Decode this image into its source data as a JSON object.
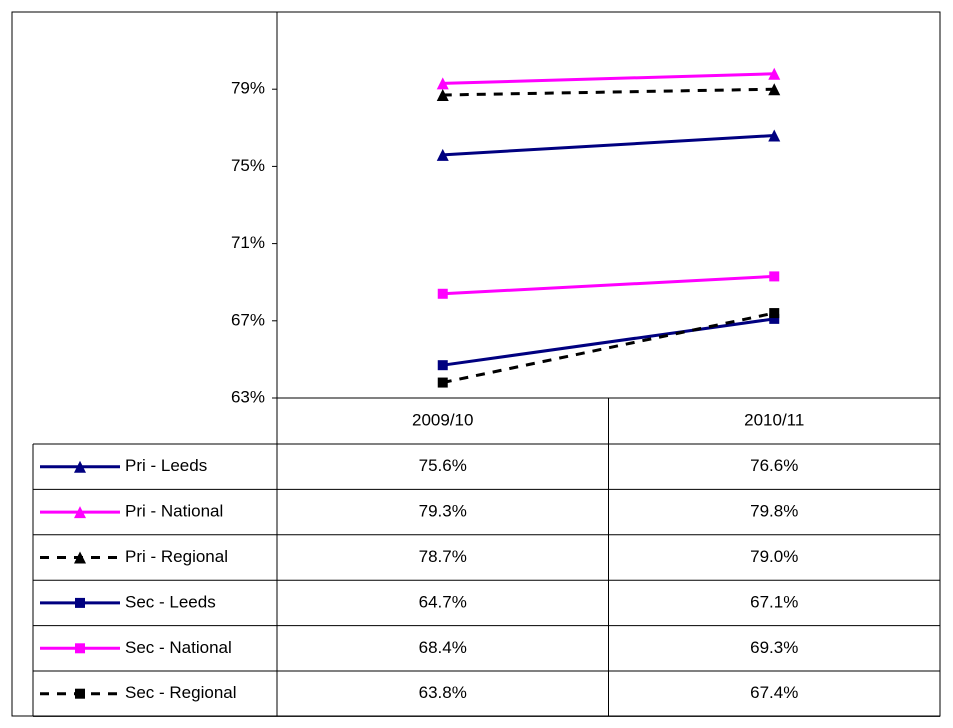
{
  "chart_data": {
    "type": "line",
    "categories": [
      "2009/10",
      "2010/11"
    ],
    "ylim": [
      63,
      83
    ],
    "yticks": [
      {
        "value": 63,
        "label": "63%"
      },
      {
        "value": 67,
        "label": "67%"
      },
      {
        "value": 71,
        "label": "71%"
      },
      {
        "value": 75,
        "label": "75%"
      },
      {
        "value": 79,
        "label": "79%"
      }
    ],
    "series": [
      {
        "name": "Pri - Leeds",
        "color": "#000080",
        "marker": "triangle",
        "dashed": false,
        "values": [
          75.6,
          76.6
        ],
        "value_labels": [
          "75.6%",
          "76.6%"
        ]
      },
      {
        "name": "Pri - National",
        "color": "#ff00ff",
        "marker": "triangle",
        "dashed": false,
        "values": [
          79.3,
          79.8
        ],
        "value_labels": [
          "79.3%",
          "79.8%"
        ]
      },
      {
        "name": "Pri - Regional",
        "color": "#000000",
        "marker": "triangle",
        "dashed": true,
        "values": [
          78.7,
          79.0
        ],
        "value_labels": [
          "78.7%",
          "79.0%"
        ]
      },
      {
        "name": "Sec - Leeds",
        "color": "#000080",
        "marker": "square",
        "dashed": false,
        "values": [
          64.7,
          67.1
        ],
        "value_labels": [
          "64.7%",
          "67.1%"
        ]
      },
      {
        "name": "Sec - National",
        "color": "#ff00ff",
        "marker": "square",
        "dashed": false,
        "values": [
          68.4,
          69.3
        ],
        "value_labels": [
          "68.4%",
          "69.3%"
        ]
      },
      {
        "name": "Sec - Regional",
        "color": "#000000",
        "marker": "square",
        "dashed": true,
        "values": [
          63.8,
          67.4
        ],
        "value_labels": [
          "63.8%",
          "67.4%"
        ]
      }
    ]
  }
}
